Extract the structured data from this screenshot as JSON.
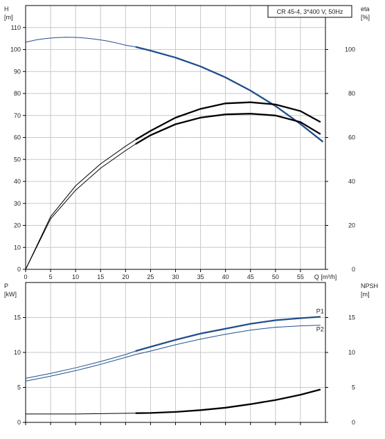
{
  "chart_data": [
    {
      "type": "line",
      "title": "CR 45-4, 3*400 V, 50Hz",
      "x_axis": {
        "label": "Q [m³/h]",
        "range": [
          0,
          60
        ],
        "ticks": [
          0,
          5,
          10,
          15,
          20,
          25,
          30,
          35,
          40,
          45,
          50,
          55
        ]
      },
      "y_left_axis": {
        "label_line1": "H",
        "label_line2": "[m]",
        "range": [
          0,
          120
        ],
        "ticks": [
          0,
          10,
          20,
          30,
          40,
          50,
          60,
          70,
          80,
          90,
          100,
          110
        ]
      },
      "y_right_axis": {
        "label_line1": "eta",
        "label_line2": "[%]",
        "range": [
          0,
          120
        ],
        "ticks": [
          0,
          20,
          40,
          60,
          80,
          100
        ]
      },
      "grid": true,
      "series": [
        {
          "axis": "left",
          "color": "#1f4e8c",
          "duty_from": 22,
          "points": [
            [
              0,
              103.3
            ],
            [
              2,
              104.3
            ],
            [
              4,
              105.0
            ],
            [
              6,
              105.4
            ],
            [
              8,
              105.6
            ],
            [
              10,
              105.5
            ],
            [
              12,
              105.2
            ],
            [
              14,
              104.7
            ],
            [
              16,
              104.0
            ],
            [
              18,
              103.1
            ],
            [
              20,
              102.0
            ],
            [
              22,
              101.2
            ],
            [
              25,
              99.5
            ],
            [
              30,
              96.3
            ],
            [
              35,
              92.3
            ],
            [
              40,
              87.3
            ],
            [
              45,
              81.3
            ],
            [
              50,
              74.3
            ],
            [
              55,
              66.1
            ],
            [
              59.5,
              58.0
            ]
          ]
        },
        {
          "axis": "right",
          "color": "#000000",
          "duty_from": 22,
          "points": [
            [
              0,
              0
            ],
            [
              5,
              24
            ],
            [
              10,
              38
            ],
            [
              15,
              48
            ],
            [
              20,
              56
            ],
            [
              22,
              59
            ],
            [
              25,
              63
            ],
            [
              30,
              69
            ],
            [
              35,
              73
            ],
            [
              40,
              75.5
            ],
            [
              45,
              76
            ],
            [
              50,
              75
            ],
            [
              55,
              72
            ],
            [
              59,
              67
            ]
          ]
        },
        {
          "axis": "right",
          "color": "#000000",
          "duty_from": 22,
          "points": [
            [
              0,
              0
            ],
            [
              5,
              23
            ],
            [
              10,
              36
            ],
            [
              15,
              46
            ],
            [
              20,
              54
            ],
            [
              22,
              57
            ],
            [
              25,
              61
            ],
            [
              30,
              66
            ],
            [
              35,
              69
            ],
            [
              40,
              70.5
            ],
            [
              45,
              70.8
            ],
            [
              50,
              70
            ],
            [
              55,
              67
            ],
            [
              59,
              61.5
            ]
          ]
        }
      ]
    },
    {
      "type": "line",
      "x_axis": {
        "range": [
          0,
          60
        ],
        "ticks": [
          0,
          5,
          10,
          15,
          20,
          25,
          30,
          35,
          40,
          45,
          50,
          55
        ]
      },
      "y_left_axis": {
        "label_line1": "P",
        "label_line2": "[kW]",
        "range": [
          0,
          20
        ],
        "ticks": [
          0,
          5,
          10,
          15
        ]
      },
      "y_right_axis": {
        "label_line1": "NPSH",
        "label_line2": "[m]",
        "range": [
          0,
          20
        ],
        "ticks": [
          0,
          5,
          10,
          15
        ]
      },
      "grid": true,
      "series": [
        {
          "name": "P1",
          "axis": "left",
          "color": "#1f4e8c",
          "duty_from": 22,
          "points": [
            [
              0,
              6.3
            ],
            [
              5,
              7.0
            ],
            [
              10,
              7.8
            ],
            [
              15,
              8.7
            ],
            [
              20,
              9.7
            ],
            [
              22,
              10.2
            ],
            [
              25,
              10.8
            ],
            [
              30,
              11.8
            ],
            [
              35,
              12.7
            ],
            [
              40,
              13.4
            ],
            [
              45,
              14.1
            ],
            [
              50,
              14.6
            ],
            [
              55,
              14.9
            ],
            [
              59,
              15.1
            ]
          ]
        },
        {
          "name": "P2",
          "axis": "left",
          "color": "#1f4e8c",
          "duty_from": 99,
          "points": [
            [
              0,
              5.9
            ],
            [
              5,
              6.6
            ],
            [
              10,
              7.4
            ],
            [
              15,
              8.3
            ],
            [
              20,
              9.3
            ],
            [
              22,
              9.7
            ],
            [
              25,
              10.2
            ],
            [
              30,
              11.1
            ],
            [
              35,
              11.9
            ],
            [
              40,
              12.6
            ],
            [
              45,
              13.2
            ],
            [
              50,
              13.6
            ],
            [
              55,
              13.8
            ],
            [
              59,
              13.9
            ]
          ]
        },
        {
          "axis": "right",
          "color": "#000000",
          "duty_from": 22,
          "points": [
            [
              0,
              1.2
            ],
            [
              10,
              1.2
            ],
            [
              20,
              1.3
            ],
            [
              25,
              1.35
            ],
            [
              30,
              1.5
            ],
            [
              35,
              1.75
            ],
            [
              40,
              2.1
            ],
            [
              45,
              2.6
            ],
            [
              50,
              3.2
            ],
            [
              55,
              3.95
            ],
            [
              59,
              4.7
            ]
          ]
        }
      ]
    }
  ]
}
